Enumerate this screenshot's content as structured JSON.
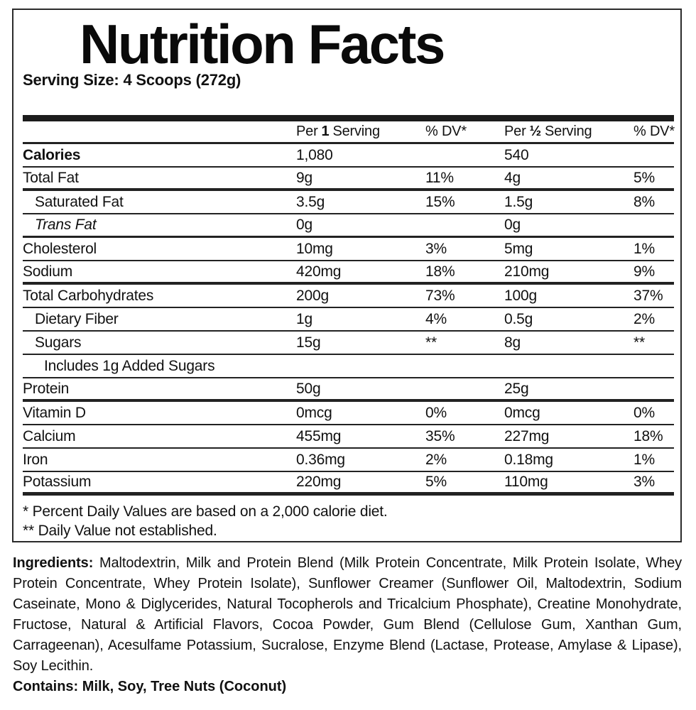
{
  "label": {
    "title": "Nutrition Facts",
    "serving_size": "Serving Size: 4 Scoops (272g)",
    "colors": {
      "text": "#111111",
      "rule": "#222222",
      "background": "#ffffff"
    },
    "table": {
      "header": {
        "per1_pre": "Per",
        "per1_num": "1",
        "per1_post": "Serving",
        "perhalf_pre": "Per",
        "perhalf_num": "½",
        "perhalf_post": "Serving",
        "dv": "% DV*"
      },
      "rows": [
        {
          "label": "Calories",
          "v1": "1,080",
          "dv1": "",
          "v2": "540",
          "dv2": "",
          "bold": true,
          "indent": 0,
          "sep": "thin"
        },
        {
          "label": "Total Fat",
          "v1": "9g",
          "dv1": "11%",
          "v2": "4g",
          "dv2": "5%",
          "indent": 0,
          "sep": "thick"
        },
        {
          "label": "Saturated Fat",
          "v1": "3.5g",
          "dv1": "15%",
          "v2": "1.5g",
          "dv2": "8%",
          "indent": 1,
          "sep": "thin"
        },
        {
          "label": "Trans Fat",
          "v1": "0g",
          "dv1": "",
          "v2": "0g",
          "dv2": "",
          "indent": 1,
          "italic": true,
          "sep": "medium"
        },
        {
          "label": "Cholesterol",
          "v1": "10mg",
          "dv1": "3%",
          "v2": "5mg",
          "dv2": "1%",
          "indent": 0,
          "sep": "thin"
        },
        {
          "label": "Sodium",
          "v1": "420mg",
          "dv1": "18%",
          "v2": "210mg",
          "dv2": "9%",
          "indent": 0,
          "sep": "thick"
        },
        {
          "label": "Total Carbohydrates",
          "v1": "200g",
          "dv1": "73%",
          "v2": "100g",
          "dv2": "37%",
          "indent": 0,
          "sep": "thin"
        },
        {
          "label": "Dietary Fiber",
          "v1": "1g",
          "dv1": "4%",
          "v2": "0.5g",
          "dv2": "2%",
          "indent": 1,
          "sep": "thin"
        },
        {
          "label": "Sugars",
          "v1": "15g",
          "dv1": "**",
          "v2": "8g",
          "dv2": "**",
          "indent": 1,
          "sep": "thin"
        },
        {
          "label": "Includes 1g Added Sugars",
          "v1": "",
          "dv1": "",
          "v2": "",
          "dv2": "",
          "indent": 2,
          "sep": "thin"
        },
        {
          "label": "Protein",
          "v1": "50g",
          "dv1": "",
          "v2": "25g",
          "dv2": "",
          "indent": 0,
          "sep": "thick"
        },
        {
          "label": "Vitamin D",
          "v1": "0mcg",
          "dv1": "0%",
          "v2": "0mcg",
          "dv2": "0%",
          "indent": 0,
          "sep": "thin"
        },
        {
          "label": "Calcium",
          "v1": "455mg",
          "dv1": "35%",
          "v2": "227mg",
          "dv2": "18%",
          "indent": 0,
          "sep": "thin"
        },
        {
          "label": "Iron",
          "v1": "0.36mg",
          "dv1": "2%",
          "v2": "0.18mg",
          "dv2": "1%",
          "indent": 0,
          "sep": "thin"
        },
        {
          "label": "Potassium",
          "v1": "220mg",
          "dv1": "5%",
          "v2": "110mg",
          "dv2": "3%",
          "indent": 0,
          "sep": "thickest"
        }
      ]
    },
    "footnote_dv": "* Percent Daily Values are based on a 2,000 calorie diet.",
    "footnote_ns": "** Daily Value not established.",
    "ingredients_label": "Ingredients:",
    "ingredients_text": "Maltodextrin, Milk and Protein Blend (Milk Protein Concentrate, Milk Protein Isolate, Whey Protein Concentrate, Whey Protein Isolate), Sunflower Creamer (Sunflower Oil, Maltodextrin, Sodium Caseinate, Mono & Diglycerides, Natural Tocopherols and Tricalcium Phosphate), Creatine Monohydrate, Fructose, Natural & Artificial Flavors, Cocoa Powder, Gum Blend (Cellulose Gum, Xanthan Gum, Carrageenan), Acesulfame Potassium, Sucralose, Enzyme Blend (Lactase, Protease, Amylase & Lipase), Soy Lecithin.",
    "contains_label": "Contains:",
    "contains_text": "Milk, Soy, Tree Nuts (Coconut)"
  }
}
